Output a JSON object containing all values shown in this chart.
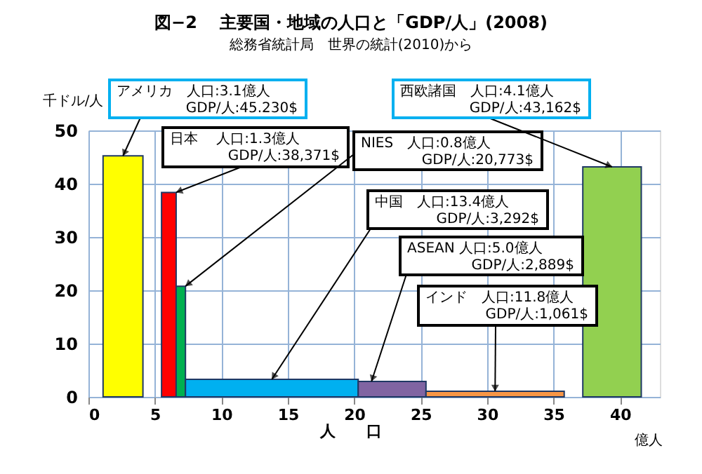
{
  "chart_data": {
    "type": "area",
    "title": "図−2　 主要国・地域の人口と「GDP/人」(2008)",
    "subtitle": "総務省統計局　世界の統計(2010)から",
    "xlabel": "人　　口",
    "ylabel": "千ドル/人",
    "series": [
      {
        "x": [
          1.1,
          4.1
        ],
        "values": [
          45.23,
          45.23
        ],
        "color": "#ffff00"
      },
      {
        "x": [
          5.5,
          6.6
        ],
        "values": [
          38.371,
          38.371
        ],
        "color": "#ff0000"
      },
      {
        "x": [
          6.6,
          7.3
        ],
        "values": [
          20.773,
          20.773
        ],
        "color": "#00b050"
      },
      {
        "x": [
          7.3,
          20.3
        ],
        "values": [
          3.292,
          3.292
        ],
        "color": "#00b0f0"
      },
      {
        "x": [
          20.3,
          25.4
        ],
        "values": [
          2.889,
          2.889
        ],
        "color": "#8064a2"
      },
      {
        "x": [
          25.4,
          35.8
        ],
        "values": [
          1.061,
          1.061
        ],
        "color": "#f79646"
      },
      {
        "x": [
          37.2,
          41.6
        ],
        "values": [
          43.162,
          43.162
        ],
        "color": "#92d050"
      }
    ],
    "xlim": [
      0,
      43
    ],
    "xticks": [
      0,
      5,
      10,
      15,
      20,
      25,
      30,
      35,
      40
    ],
    "ylim": [
      0,
      50
    ],
    "yticks": [
      0,
      10,
      20,
      30,
      40,
      50
    ],
    "grid": true,
    "annotations": [
      {
        "text": "アメリカ　人口:3.1億人\nGDP/人:45.230$",
        "x": 2.6,
        "y": 45.23
      },
      {
        "text": "日本　 人口:1.3億人\nGDP/人:38,371$",
        "x": 6.6,
        "y": 38.371
      },
      {
        "text": "NIES　人口:0.8億人\nGDP/人:20,773$",
        "x": 7.3,
        "y": 20.773
      },
      {
        "text": "中国　人口:13.4億人\nGDP/人:3,292$",
        "x": 13.8,
        "y": 3.292
      },
      {
        "text": "ASEAN 人口:5.0億人\nGDP/人:2,889$",
        "x": 21.3,
        "y": 2.889
      },
      {
        "text": "インド　人口:11.8億人\nGDP/人:1,061$",
        "x": 30.6,
        "y": 1.061
      },
      {
        "text": "西欧諸国　人口:4.1億人\nGDP/人:43,162$",
        "x": 39.4,
        "y": 43.162
      },
      "億人"
    ]
  }
}
